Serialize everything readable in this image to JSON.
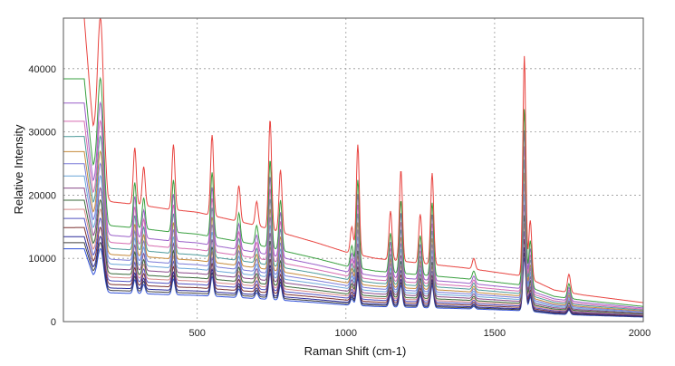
{
  "chart_data": {
    "type": "line",
    "title": "",
    "xlabel": "Raman Shift (cm-1)",
    "ylabel": "Relative Intensity",
    "xlim": [
      50,
      2000
    ],
    "ylim": [
      0,
      48000
    ],
    "x_ticks": [
      500,
      1000,
      1500,
      2000
    ],
    "y_ticks": [
      0,
      10000,
      20000,
      30000,
      40000
    ],
    "x_tick_labels": [
      "500",
      "1000",
      "1500",
      "2000"
    ],
    "y_tick_labels": [
      "0",
      "10000",
      "20000",
      "30000",
      "40000"
    ],
    "grid": true,
    "legend": "none",
    "baseline": {
      "description_points": [
        [
          50,
          48000
        ],
        [
          120,
          48000
        ],
        [
          150,
          30000
        ],
        [
          200,
          19000
        ],
        [
          300,
          18500
        ],
        [
          400,
          17800
        ],
        [
          500,
          17300
        ],
        [
          700,
          15200
        ],
        [
          900,
          12500
        ],
        [
          1000,
          11000
        ],
        [
          1100,
          10000
        ],
        [
          1200,
          9500
        ],
        [
          1400,
          8500
        ],
        [
          1550,
          7500
        ],
        [
          1600,
          7200
        ],
        [
          1700,
          5000
        ],
        [
          1800,
          4200
        ],
        [
          2000,
          3000
        ]
      ]
    },
    "peaks": [
      {
        "x": 115,
        "y": 48000
      },
      {
        "x": 175,
        "y": 48000
      },
      {
        "x": 290,
        "y": 27500
      },
      {
        "x": 320,
        "y": 24500
      },
      {
        "x": 420,
        "y": 28000
      },
      {
        "x": 550,
        "y": 29500
      },
      {
        "x": 640,
        "y": 21500
      },
      {
        "x": 700,
        "y": 19000
      },
      {
        "x": 745,
        "y": 32000
      },
      {
        "x": 780,
        "y": 24000
      },
      {
        "x": 1020,
        "y": 15000
      },
      {
        "x": 1040,
        "y": 28000
      },
      {
        "x": 1150,
        "y": 17500
      },
      {
        "x": 1185,
        "y": 24000
      },
      {
        "x": 1250,
        "y": 17000
      },
      {
        "x": 1290,
        "y": 23500
      },
      {
        "x": 1430,
        "y": 10000
      },
      {
        "x": 1600,
        "y": 42000
      },
      {
        "x": 1620,
        "y": 16000
      },
      {
        "x": 1750,
        "y": 7500
      }
    ],
    "series": [
      {
        "color": "#e8433f",
        "scale": 1.0
      },
      {
        "color": "#3aa040",
        "scale": 0.8
      },
      {
        "color": "#9a5fc8",
        "scale": 0.72
      },
      {
        "color": "#d66bb0",
        "scale": 0.66
      },
      {
        "color": "#4d9a9a",
        "scale": 0.61
      },
      {
        "color": "#c58a3a",
        "scale": 0.56
      },
      {
        "color": "#7a7ad8",
        "scale": 0.52
      },
      {
        "color": "#6aa5d8",
        "scale": 0.48
      },
      {
        "color": "#8a4a8a",
        "scale": 0.44
      },
      {
        "color": "#3a6a3a",
        "scale": 0.4
      },
      {
        "color": "#d88a8a",
        "scale": 0.37
      },
      {
        "color": "#5050c0",
        "scale": 0.34
      },
      {
        "color": "#7b3030",
        "scale": 0.31
      },
      {
        "color": "#2a2a9a",
        "scale": 0.28
      },
      {
        "color": "#404040",
        "scale": 0.26
      },
      {
        "color": "#3050d8",
        "scale": 0.24
      }
    ]
  }
}
